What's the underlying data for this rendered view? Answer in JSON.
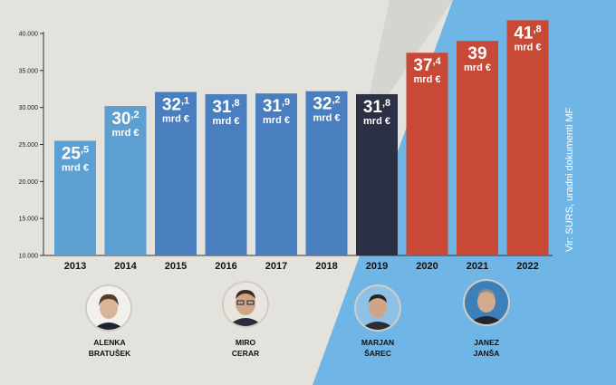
{
  "colors": {
    "background": "#e4e2dc",
    "bar_blue": "#4a7fbf",
    "bar_light_blue": "#5d9fd1",
    "bar_dark": "#2b3045",
    "bar_red": "#c84a36",
    "accent_light_blue": "#6fb6e6"
  },
  "source_text": "Vir: SURS, uradni dokumenti MF",
  "chart_data": {
    "type": "bar",
    "categories": [
      "2013",
      "2014",
      "2015",
      "2016",
      "2017",
      "2018",
      "2019",
      "2020",
      "2021",
      "2022"
    ],
    "values": [
      25.5,
      30.2,
      32.1,
      31.8,
      31.9,
      32.2,
      31.8,
      37.4,
      39,
      41.8
    ],
    "value_labels": [
      {
        "main": "25",
        "sup": ",5"
      },
      {
        "main": "30",
        "sup": ",2"
      },
      {
        "main": "32",
        "sup": ",1"
      },
      {
        "main": "31",
        "sup": ",8"
      },
      {
        "main": "31",
        "sup": ",9"
      },
      {
        "main": "32",
        "sup": ",2"
      },
      {
        "main": "31",
        "sup": ",8"
      },
      {
        "main": "37",
        "sup": ",4"
      },
      {
        "main": "39",
        "sup": ""
      },
      {
        "main": "41",
        "sup": ",8"
      }
    ],
    "unit_label": "mrd €",
    "bar_colors": [
      "#5d9fd1",
      "#5d9fd1",
      "#4a7fbf",
      "#4a7fbf",
      "#4a7fbf",
      "#4a7fbf",
      "#2b3045",
      "#c84a36",
      "#c84a36",
      "#c84a36"
    ],
    "y_ticks": [
      "40.000",
      "35.000",
      "30.000",
      "25.000",
      "20.000",
      "15.000",
      "10.000"
    ],
    "ylim": [
      10,
      42
    ],
    "title": "",
    "xlabel": "",
    "ylabel": ""
  },
  "people": [
    {
      "line1": "ALENKA",
      "line2": "BRATUŠEK",
      "icon": "portrait-woman-icon"
    },
    {
      "line1": "MIRO",
      "line2": "CERAR",
      "icon": "portrait-man-glasses-icon"
    },
    {
      "line1": "MARJAN",
      "line2": "ŠAREC",
      "icon": "portrait-man-icon"
    },
    {
      "line1": "JANEZ",
      "line2": "JANŠA",
      "icon": "portrait-man-icon"
    }
  ]
}
